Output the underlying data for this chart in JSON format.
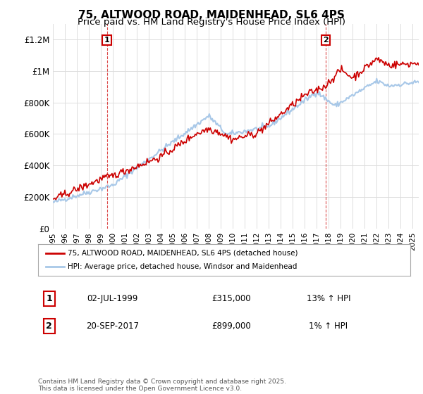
{
  "title_line1": "75, ALTWOOD ROAD, MAIDENHEAD, SL6 4PS",
  "title_line2": "Price paid vs. HM Land Registry's House Price Index (HPI)",
  "ylabel_ticks": [
    "£0",
    "£200K",
    "£400K",
    "£600K",
    "£800K",
    "£1M",
    "£1.2M"
  ],
  "ytick_vals": [
    0,
    200000,
    400000,
    600000,
    800000,
    1000000,
    1200000
  ],
  "ylim": [
    0,
    1300000
  ],
  "xlim_start": 1995.0,
  "xlim_end": 2025.5,
  "xtick_years": [
    1995,
    1996,
    1997,
    1998,
    1999,
    2000,
    2001,
    2002,
    2003,
    2004,
    2005,
    2006,
    2007,
    2008,
    2009,
    2010,
    2011,
    2012,
    2013,
    2014,
    2015,
    2016,
    2017,
    2018,
    2019,
    2020,
    2021,
    2022,
    2023,
    2024,
    2025
  ],
  "hpi_color": "#a8c8e8",
  "price_color": "#cc0000",
  "marker1_x": 1999.5,
  "marker1_y": 315000,
  "marker1_label": "1",
  "marker2_x": 2017.72,
  "marker2_y": 899000,
  "marker2_label": "2",
  "legend_price": "75, ALTWOOD ROAD, MAIDENHEAD, SL6 4PS (detached house)",
  "legend_hpi": "HPI: Average price, detached house, Windsor and Maidenhead",
  "annotation1_num": "1",
  "annotation1_date": "02-JUL-1999",
  "annotation1_price": "£315,000",
  "annotation1_hpi": "13% ↑ HPI",
  "annotation2_num": "2",
  "annotation2_date": "20-SEP-2017",
  "annotation2_price": "£899,000",
  "annotation2_hpi": "1% ↑ HPI",
  "footnote": "Contains HM Land Registry data © Crown copyright and database right 2025.\nThis data is licensed under the Open Government Licence v3.0.",
  "bg_color": "#ffffff",
  "grid_color": "#dddddd",
  "title_fontsize": 11,
  "subtitle_fontsize": 9.5
}
